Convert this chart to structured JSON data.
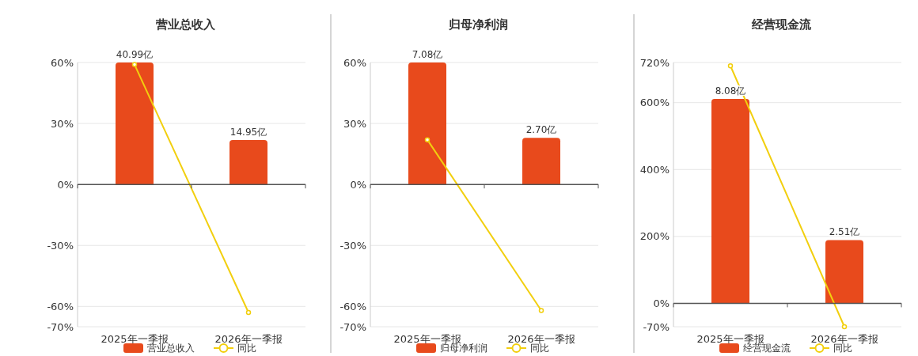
{
  "chart_data": [
    {
      "type": "bar",
      "title": "营业总收入",
      "categories": [
        "2025年一季报",
        "2026年一季报"
      ],
      "ylim": [
        -70,
        60
      ],
      "yticks": [
        {
          "value": 60,
          "label": "60%"
        },
        {
          "value": 30,
          "label": "30%"
        },
        {
          "value": 0,
          "label": "0%"
        },
        {
          "value": -30,
          "label": "-30%"
        },
        {
          "value": -60,
          "label": "-60%"
        },
        {
          "value": -70,
          "label": "-70%"
        }
      ],
      "y2lim": [
        -47.82,
        40.99
      ],
      "grid": "y",
      "legend": "bottom",
      "series": [
        {
          "name": "营业总收入",
          "axis": "y2",
          "color": "#e84a1c",
          "values": [
            40.99,
            14.95
          ],
          "value_labels": [
            "40.99亿",
            "14.95亿"
          ]
        },
        {
          "name": "同比",
          "type": "line",
          "color": "#f2cf0e",
          "marker": "circle",
          "values": [
            59,
            -63
          ]
        }
      ]
    },
    {
      "type": "bar",
      "title": "归母净利润",
      "categories": [
        "2025年一季报",
        "2026年一季报"
      ],
      "ylim": [
        -70,
        60
      ],
      "yticks": [
        {
          "value": 60,
          "label": "60%"
        },
        {
          "value": 30,
          "label": "30%"
        },
        {
          "value": 0,
          "label": "0%"
        },
        {
          "value": -30,
          "label": "-30%"
        },
        {
          "value": -60,
          "label": "-60%"
        },
        {
          "value": -70,
          "label": "-70%"
        }
      ],
      "y2lim": [
        -8.26,
        7.08
      ],
      "grid": "y",
      "legend": "bottom",
      "series": [
        {
          "name": "归母净利润",
          "axis": "y2",
          "color": "#e84a1c",
          "values": [
            7.08,
            2.7
          ],
          "value_labels": [
            "7.08亿",
            "2.70亿"
          ]
        },
        {
          "name": "同比",
          "type": "line",
          "color": "#f2cf0e",
          "marker": "circle",
          "values": [
            22,
            -62
          ]
        }
      ]
    },
    {
      "type": "bar",
      "title": "经营现金流",
      "categories": [
        "2025年一季报",
        "2026年一季报"
      ],
      "ylim": [
        -70,
        720
      ],
      "yticks": [
        {
          "value": 720,
          "label": "720%"
        },
        {
          "value": 600,
          "label": "600%"
        },
        {
          "value": 400,
          "label": "400%"
        },
        {
          "value": 200,
          "label": "200%"
        },
        {
          "value": 0,
          "label": "0%"
        },
        {
          "value": -70,
          "label": "-70%"
        }
      ],
      "y2lim": [
        -0.91,
        9.52
      ],
      "grid": "y",
      "legend": "bottom",
      "series": [
        {
          "name": "经营现金流",
          "axis": "y2",
          "color": "#e84a1c",
          "values": [
            8.08,
            2.51
          ],
          "value_labels": [
            "8.08亿",
            "2.51亿"
          ]
        },
        {
          "name": "同比",
          "type": "line",
          "color": "#f2cf0e",
          "marker": "circle",
          "values": [
            710,
            -70
          ]
        }
      ]
    }
  ]
}
